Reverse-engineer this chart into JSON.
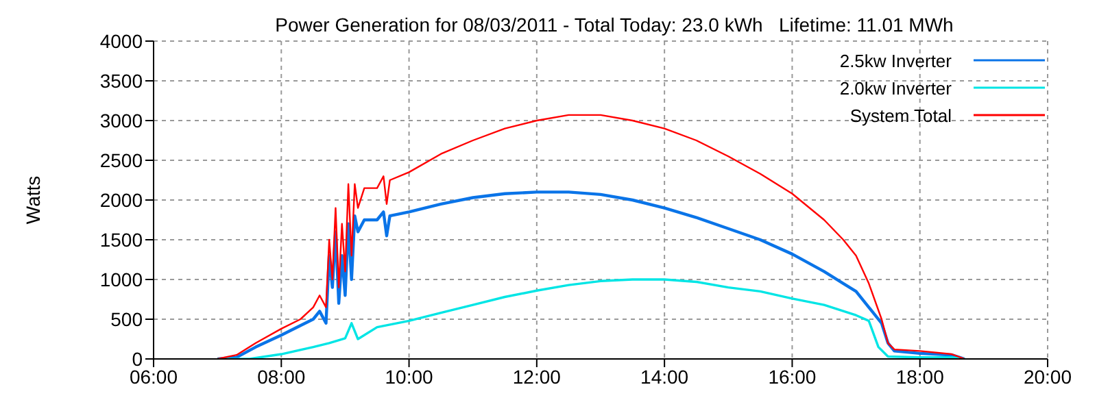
{
  "chart_data": {
    "type": "line",
    "title": "Power Generation for 08/03/2011 - Total Today: 23.0 kWh   Lifetime: 11.01 MWh",
    "ylabel": "Watts",
    "xlim": [
      6,
      20
    ],
    "xticks": [
      {
        "value": 6,
        "label": "06:00"
      },
      {
        "value": 8,
        "label": "08:00"
      },
      {
        "value": 10,
        "label": "10:00"
      },
      {
        "value": 12,
        "label": "12:00"
      },
      {
        "value": 14,
        "label": "14:00"
      },
      {
        "value": 16,
        "label": "16:00"
      },
      {
        "value": 18,
        "label": "18:00"
      },
      {
        "value": 20,
        "label": "20:00"
      }
    ],
    "ylim": [
      0,
      4000
    ],
    "yticks": [
      0,
      500,
      1000,
      1500,
      2000,
      2500,
      3000,
      3500,
      4000
    ],
    "grid": true,
    "legend": "top right",
    "marker": "none",
    "line_style": "solid",
    "series": [
      {
        "name": "2.5kw Inverter",
        "color": "#0a74e8",
        "x": [
          7.0,
          7.3,
          7.6,
          8.0,
          8.3,
          8.5,
          8.6,
          8.7,
          8.75,
          8.8,
          8.85,
          8.9,
          8.95,
          9.0,
          9.05,
          9.1,
          9.15,
          9.2,
          9.3,
          9.5,
          9.6,
          9.65,
          9.7,
          10.0,
          10.5,
          11.0,
          11.5,
          12.0,
          12.5,
          13.0,
          13.5,
          14.0,
          14.5,
          15.0,
          15.5,
          16.0,
          16.5,
          16.8,
          17.0,
          17.2,
          17.4,
          17.5,
          17.6,
          18.0,
          18.5,
          18.7
        ],
        "values": [
          0,
          20,
          150,
          300,
          420,
          500,
          600,
          450,
          1300,
          900,
          1600,
          700,
          1300,
          800,
          1700,
          1000,
          1800,
          1600,
          1750,
          1750,
          1850,
          1550,
          1800,
          1850,
          1950,
          2030,
          2080,
          2100,
          2100,
          2070,
          2000,
          1900,
          1780,
          1640,
          1500,
          1320,
          1100,
          950,
          850,
          650,
          450,
          200,
          100,
          70,
          50,
          0
        ]
      },
      {
        "name": "2.0kw Inverter",
        "color": "#00e5e5",
        "x": [
          7.0,
          7.5,
          8.0,
          8.5,
          8.75,
          9.0,
          9.1,
          9.2,
          9.5,
          10.0,
          10.5,
          11.0,
          11.5,
          12.0,
          12.5,
          13.0,
          13.5,
          14.0,
          14.5,
          15.0,
          15.5,
          16.0,
          16.5,
          17.0,
          17.2,
          17.35,
          17.5,
          18.0,
          18.5,
          18.7
        ],
        "values": [
          0,
          0,
          60,
          150,
          200,
          260,
          450,
          250,
          400,
          480,
          580,
          680,
          780,
          860,
          930,
          980,
          1000,
          1000,
          970,
          900,
          850,
          760,
          680,
          550,
          480,
          150,
          30,
          20,
          20,
          0
        ]
      },
      {
        "name": "System Total",
        "color": "#ff0000",
        "x": [
          7.0,
          7.3,
          7.6,
          8.0,
          8.3,
          8.5,
          8.6,
          8.7,
          8.75,
          8.8,
          8.85,
          8.9,
          8.95,
          9.0,
          9.05,
          9.1,
          9.15,
          9.2,
          9.3,
          9.5,
          9.6,
          9.65,
          9.7,
          10.0,
          10.5,
          11.0,
          11.5,
          12.0,
          12.5,
          13.0,
          13.5,
          14.0,
          14.5,
          15.0,
          15.5,
          16.0,
          16.5,
          16.8,
          17.0,
          17.2,
          17.4,
          17.5,
          17.6,
          18.0,
          18.5,
          18.7
        ],
        "values": [
          0,
          50,
          200,
          380,
          500,
          650,
          800,
          650,
          1500,
          1000,
          1900,
          900,
          1700,
          1100,
          2200,
          1300,
          2200,
          1900,
          2150,
          2150,
          2300,
          1950,
          2250,
          2350,
          2580,
          2750,
          2900,
          3000,
          3070,
          3070,
          3000,
          2900,
          2750,
          2550,
          2330,
          2080,
          1750,
          1500,
          1300,
          950,
          500,
          200,
          120,
          100,
          60,
          0
        ]
      }
    ]
  }
}
